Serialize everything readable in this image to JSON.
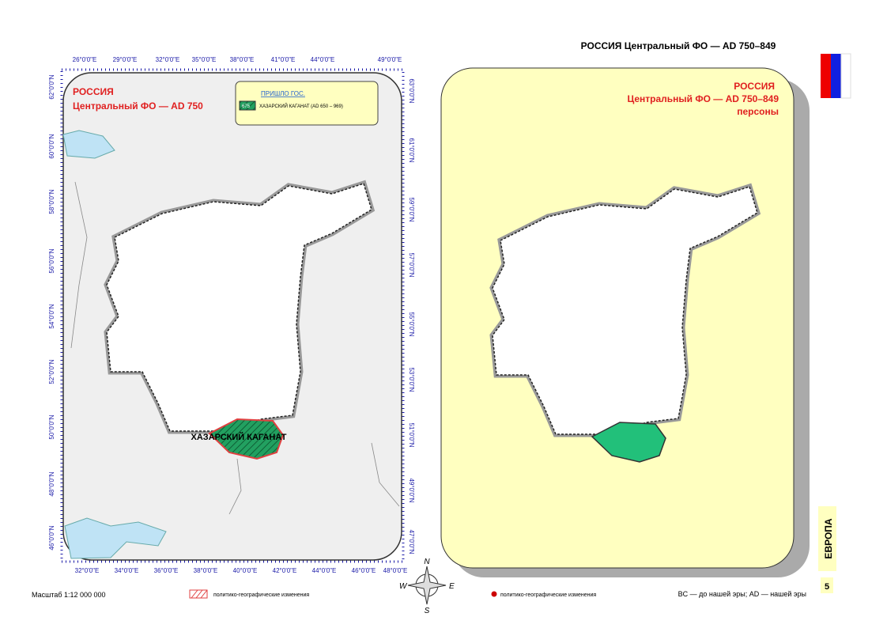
{
  "header": {
    "title": "РОССИЯ  Центральный ФО —  AD 750–849"
  },
  "left_map": {
    "title": "РОССИЯ",
    "subtitle": "Центральный ФО — AD 750",
    "legend": {
      "heading": "ПРИШЛО ГОС.",
      "code": "675",
      "entry": "ХАЗАРСКИЙ КАГАНАТ (AD 650 – 969)"
    },
    "region_label": "ХАЗАРСКИЙ КАГАНАТ",
    "top_longitudes": [
      "26°0'0\"E",
      "29°0'0\"E",
      "32°0'0\"E",
      "35°0'0\"E",
      "38°0'0\"E",
      "41°0'0\"E",
      "44°0'0\"E",
      "49°0'0\"E"
    ],
    "bottom_longitudes": [
      "32°0'0\"E",
      "34°0'0\"E",
      "36°0'0\"E",
      "38°0'0\"E",
      "40°0'0\"E",
      "42°0'0\"E",
      "44°0'0\"E",
      "46°0'0\"E",
      "48°0'0\"E"
    ],
    "left_latitudes": [
      "62°0'0\"N",
      "60°0'0\"N",
      "58°0'0\"N",
      "56°0'0\"N",
      "54°0'0\"N",
      "52°0'0\"N",
      "50°0'0\"N",
      "48°0'0\"N",
      "46°0'0\"N"
    ],
    "right_latitudes": [
      "63°0'0\"N",
      "61°0'0\"N",
      "59°0'0\"N",
      "57°0'0\"N",
      "55°0'0\"N",
      "53°0'0\"N",
      "51°0'0\"N",
      "49°0'0\"N",
      "47°0'0\"N"
    ]
  },
  "right_map": {
    "title": "РОССИЯ",
    "subtitle": "Центральный ФО — AD 750–849",
    "note": "персоны"
  },
  "compass": {
    "n": "N",
    "e": "E",
    "s": "S",
    "w": "W"
  },
  "footer": {
    "scale": "Масштаб 1:12 000 000",
    "left_legend": "политико-географические изменения",
    "right_legend": "политико-географические изменения",
    "era_note": "BC — до нашей эры; AD — нашей эры"
  },
  "side": {
    "section": "ЕВРОПА",
    "page": "5"
  }
}
